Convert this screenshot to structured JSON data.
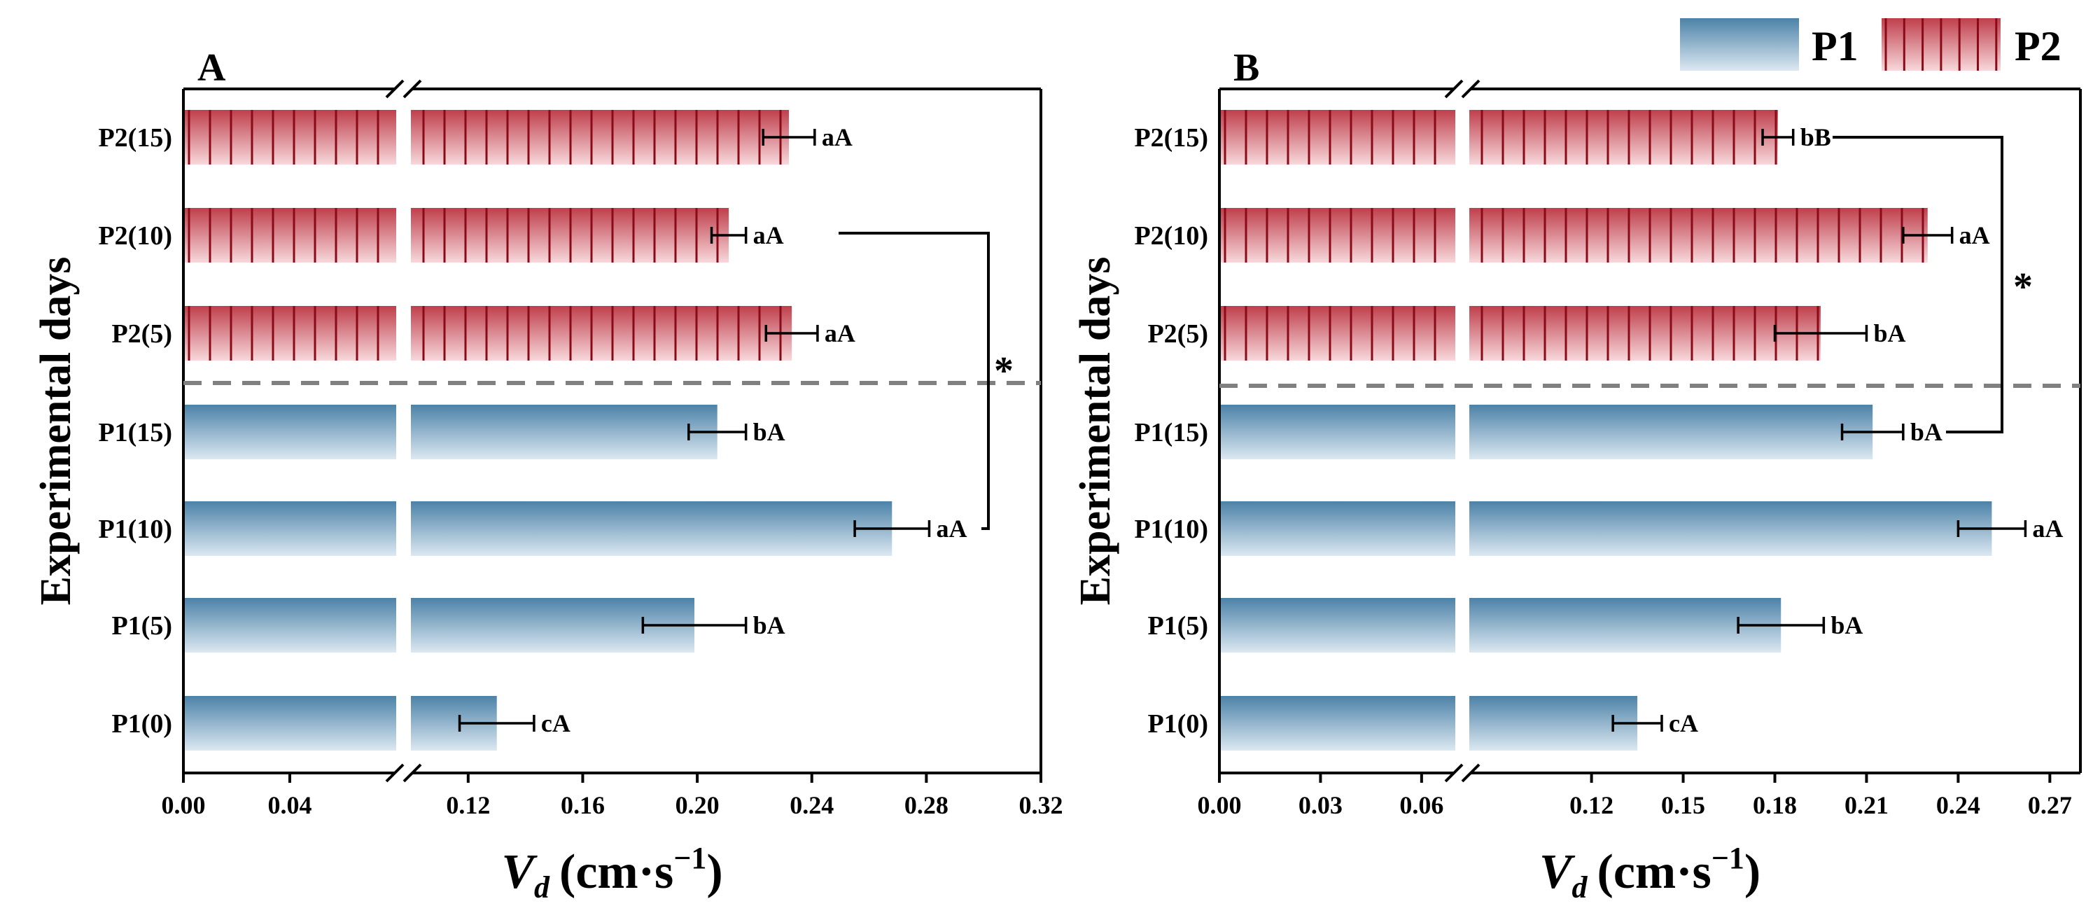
{
  "chart_data": [
    {
      "type": "bar",
      "orientation": "horizontal",
      "panel_label": "A",
      "categories": [
        "P1(0)",
        "P1(5)",
        "P1(10)",
        "P1(15)",
        "P2(5)",
        "P2(10)",
        "P2(15)"
      ],
      "values": [
        0.13,
        0.199,
        0.268,
        0.207,
        0.233,
        0.211,
        0.232
      ],
      "errors": [
        0.013,
        0.018,
        0.013,
        0.01,
        0.009,
        0.006,
        0.009
      ],
      "series_of_bar": [
        "P1",
        "P1",
        "P1",
        "P1",
        "P2",
        "P2",
        "P2"
      ],
      "significance": [
        "cA",
        "bA",
        "aA",
        "bA",
        "aA",
        "aA",
        "aA"
      ],
      "xlabel": "V_d (cm·s⁻¹)",
      "ylabel": "Experimental days",
      "xlim": [
        0.0,
        0.32
      ],
      "axis_break": [
        0.08,
        0.1
      ],
      "xticks": [
        0.0,
        0.04,
        0.12,
        0.16,
        0.2,
        0.24,
        0.28,
        0.32
      ],
      "xtick_labels": [
        "0.00",
        "0.04",
        "0.12",
        "0.16",
        "0.20",
        "0.24",
        "0.28",
        "0.32"
      ],
      "annotations": [
        {
          "text": "*",
          "between": [
            "P1(10)",
            "P2(10)"
          ]
        }
      ]
    },
    {
      "type": "bar",
      "orientation": "horizontal",
      "panel_label": "B",
      "categories": [
        "P1(0)",
        "P1(5)",
        "P1(10)",
        "P1(15)",
        "P2(5)",
        "P2(10)",
        "P2(15)"
      ],
      "values": [
        0.135,
        0.182,
        0.251,
        0.212,
        0.195,
        0.23,
        0.181
      ],
      "errors": [
        0.008,
        0.014,
        0.011,
        0.01,
        0.015,
        0.008,
        0.005
      ],
      "series_of_bar": [
        "P1",
        "P1",
        "P1",
        "P1",
        "P2",
        "P2",
        "P2"
      ],
      "significance": [
        "cA",
        "bA",
        "aA",
        "bA",
        "bA",
        "aA",
        "bB"
      ],
      "xlabel": "V_d (cm·s⁻¹)",
      "ylabel": "Experimental days",
      "xlim": [
        0.0,
        0.28
      ],
      "axis_break": [
        0.07,
        0.08
      ],
      "xticks": [
        0.0,
        0.03,
        0.06,
        0.12,
        0.15,
        0.18,
        0.21,
        0.24,
        0.27
      ],
      "xtick_labels": [
        "0.00",
        "0.03",
        "0.06",
        "0.12",
        "0.15",
        "0.18",
        "0.21",
        "0.24",
        "0.27"
      ],
      "annotations": [
        {
          "text": "*",
          "between": [
            "P1(15)",
            "P2(15)"
          ]
        }
      ]
    }
  ],
  "legend": {
    "placement": "top-right",
    "entries": [
      {
        "name": "P1",
        "color": "#5a8db0"
      },
      {
        "name": "P2",
        "color": "#c9545f"
      }
    ]
  },
  "labels": {
    "ylabel": "Experimental days",
    "xlabel_symbol": "V",
    "xlabel_sub": "d",
    "xlabel_unit_open": "(cm·s",
    "xlabel_unit_sup": "−1",
    "xlabel_unit_close": ")",
    "star": "*"
  },
  "colors": {
    "p1_top": "#4c82a8",
    "p1_bottom": "#dce8f1",
    "p2_top": "#bf3f4c",
    "p2_bottom": "#f7d8db",
    "p2_stripe": "#8a0a18",
    "divider": "#808080"
  }
}
